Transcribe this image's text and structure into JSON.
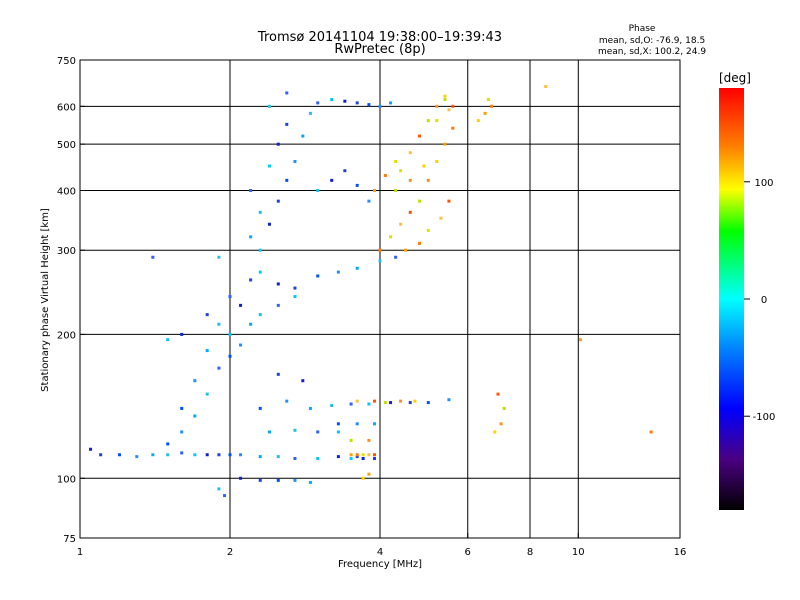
{
  "chart_data": {
    "type": "scatter",
    "title": "Tromsø 20141104 19:38:00–19:39:43",
    "subtitle": "RwPretec (8p)",
    "xlabel": "Frequency [MHz]",
    "ylabel": "Stationary phase Virtual Height [km]",
    "x_scale": "log",
    "y_scale": "log",
    "xlim": [
      1,
      16
    ],
    "ylim": [
      75,
      750
    ],
    "x_ticks": [
      1,
      2,
      4,
      6,
      8,
      10,
      16
    ],
    "y_ticks": [
      75,
      100,
      200,
      300,
      400,
      500,
      600,
      750
    ],
    "x_gridlines": [
      2,
      4,
      6,
      8,
      10
    ],
    "y_gridlines": [
      100,
      200,
      300,
      400,
      500,
      600
    ],
    "grid": true,
    "stats": {
      "heading": "Phase",
      "line_o": "mean, sd,O: -76.9, 18.5",
      "line_x": "mean, sd,X: 100.2, 24.9"
    },
    "colorbar": {
      "label": "[deg]",
      "tick_labels": [
        "100",
        "0",
        "-100"
      ],
      "tick_values": [
        100,
        0,
        -100
      ],
      "range": [
        -180,
        180
      ],
      "colormap": "rainbow"
    },
    "series": [
      {
        "mode": "O",
        "points": [
          [
            1.05,
            115
          ],
          [
            1.1,
            112
          ],
          [
            1.2,
            112
          ],
          [
            1.3,
            111
          ],
          [
            1.4,
            112
          ],
          [
            1.5,
            112
          ],
          [
            1.6,
            113
          ],
          [
            1.7,
            112
          ],
          [
            1.8,
            112
          ],
          [
            1.9,
            112
          ],
          [
            2.0,
            112
          ],
          [
            2.1,
            112
          ],
          [
            2.3,
            111
          ],
          [
            2.5,
            111
          ],
          [
            2.7,
            110
          ],
          [
            3.0,
            110
          ],
          [
            3.3,
            111
          ],
          [
            3.6,
            111
          ],
          [
            1.5,
            118
          ],
          [
            1.6,
            125
          ],
          [
            1.7,
            135
          ],
          [
            1.8,
            150
          ],
          [
            1.9,
            170
          ],
          [
            2.0,
            200
          ],
          [
            2.1,
            230
          ],
          [
            2.2,
            260
          ],
          [
            1.6,
            140
          ],
          [
            1.7,
            160
          ],
          [
            1.8,
            185
          ],
          [
            1.9,
            210
          ],
          [
            2.0,
            240
          ],
          [
            2.3,
            270
          ],
          [
            2.5,
            255
          ],
          [
            2.7,
            250
          ],
          [
            3.0,
            265
          ],
          [
            3.3,
            270
          ],
          [
            3.6,
            275
          ],
          [
            4.0,
            285
          ],
          [
            4.3,
            290
          ],
          [
            2.3,
            300
          ],
          [
            2.4,
            340
          ],
          [
            2.5,
            380
          ],
          [
            2.6,
            420
          ],
          [
            2.7,
            460
          ],
          [
            2.8,
            520
          ],
          [
            2.9,
            580
          ],
          [
            3.0,
            610
          ],
          [
            3.2,
            620
          ],
          [
            3.4,
            615
          ],
          [
            3.6,
            610
          ],
          [
            3.8,
            605
          ],
          [
            4.0,
            600
          ],
          [
            4.2,
            610
          ],
          [
            2.4,
            600
          ],
          [
            2.6,
            640
          ],
          [
            3.0,
            400
          ],
          [
            3.2,
            420
          ],
          [
            3.4,
            440
          ],
          [
            3.6,
            410
          ],
          [
            3.8,
            380
          ],
          [
            2.2,
            320
          ],
          [
            2.3,
            360
          ],
          [
            2.2,
            400
          ],
          [
            2.4,
            450
          ],
          [
            2.5,
            500
          ],
          [
            2.6,
            550
          ],
          [
            2.0,
            180
          ],
          [
            2.1,
            190
          ],
          [
            2.2,
            210
          ],
          [
            2.3,
            220
          ],
          [
            2.5,
            230
          ],
          [
            2.7,
            240
          ],
          [
            2.8,
            160
          ],
          [
            2.5,
            165
          ],
          [
            2.3,
            140
          ],
          [
            2.6,
            145
          ],
          [
            2.9,
            140
          ],
          [
            3.2,
            142
          ],
          [
            3.5,
            143
          ],
          [
            3.8,
            143
          ],
          [
            4.2,
            144
          ],
          [
            4.6,
            144
          ],
          [
            5.0,
            144
          ],
          [
            5.5,
            146
          ],
          [
            2.4,
            125
          ],
          [
            2.7,
            126
          ],
          [
            3.0,
            125
          ],
          [
            3.3,
            125
          ],
          [
            2.1,
            100
          ],
          [
            2.3,
            99
          ],
          [
            2.5,
            99
          ],
          [
            2.7,
            99
          ],
          [
            2.9,
            98
          ],
          [
            1.9,
            95
          ],
          [
            1.95,
            92
          ],
          [
            3.5,
            110
          ],
          [
            3.7,
            110
          ],
          [
            3.9,
            110
          ],
          [
            3.3,
            130
          ],
          [
            3.6,
            130
          ],
          [
            3.9,
            130
          ],
          [
            1.9,
            290
          ],
          [
            1.4,
            290
          ],
          [
            1.5,
            195
          ],
          [
            1.6,
            200
          ],
          [
            1.8,
            220
          ]
        ]
      },
      {
        "mode": "X",
        "points": [
          [
            3.7,
            100
          ],
          [
            3.8,
            102
          ],
          [
            4.0,
            300
          ],
          [
            4.2,
            320
          ],
          [
            4.4,
            340
          ],
          [
            4.6,
            360
          ],
          [
            4.8,
            380
          ],
          [
            5.0,
            420
          ],
          [
            5.2,
            460
          ],
          [
            5.4,
            500
          ],
          [
            5.6,
            540
          ],
          [
            4.4,
            440
          ],
          [
            4.6,
            480
          ],
          [
            4.8,
            520
          ],
          [
            5.0,
            560
          ],
          [
            5.2,
            600
          ],
          [
            5.4,
            630
          ],
          [
            4.5,
            300
          ],
          [
            4.8,
            310
          ],
          [
            5.0,
            330
          ],
          [
            5.3,
            350
          ],
          [
            5.5,
            380
          ],
          [
            4.3,
            400
          ],
          [
            4.6,
            420
          ],
          [
            4.9,
            450
          ],
          [
            3.9,
            400
          ],
          [
            4.1,
            430
          ],
          [
            4.3,
            460
          ],
          [
            3.6,
            145
          ],
          [
            3.9,
            145
          ],
          [
            4.1,
            144
          ],
          [
            4.4,
            145
          ],
          [
            4.7,
            145
          ],
          [
            3.5,
            112
          ],
          [
            3.6,
            112
          ],
          [
            3.7,
            112
          ],
          [
            3.8,
            112
          ],
          [
            3.9,
            112
          ],
          [
            3.5,
            120
          ],
          [
            3.8,
            120
          ],
          [
            6.3,
            560
          ],
          [
            6.5,
            580
          ],
          [
            6.7,
            600
          ],
          [
            6.6,
            620
          ],
          [
            8.6,
            660
          ],
          [
            6.9,
            150
          ],
          [
            7.1,
            140
          ],
          [
            7.0,
            130
          ],
          [
            6.8,
            125
          ],
          [
            10.1,
            195
          ],
          [
            14.0,
            125
          ],
          [
            5.2,
            560
          ],
          [
            5.5,
            590
          ],
          [
            5.6,
            600
          ],
          [
            5.4,
            620
          ]
        ]
      }
    ]
  }
}
